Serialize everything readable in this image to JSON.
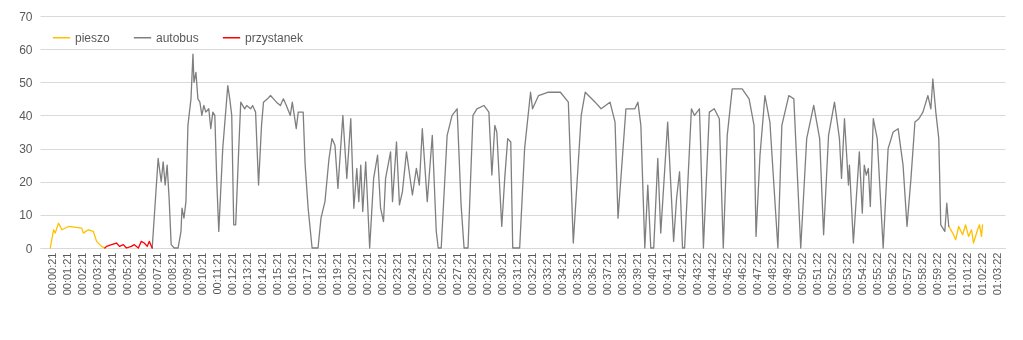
{
  "chart_data": {
    "type": "line",
    "ylim": [
      0,
      70
    ],
    "yticks": [
      0,
      10,
      20,
      30,
      40,
      50,
      60,
      70
    ],
    "grid": "y",
    "legend": "top left",
    "xlim": [
      -0.0085,
      1.064
    ],
    "xticks": [
      {
        "value": 0.00583,
        "label": "00:00:21"
      },
      {
        "value": 0.0225,
        "label": "00:01:21"
      },
      {
        "value": 0.03917,
        "label": "00:02:21"
      },
      {
        "value": 0.05583,
        "label": "00:03:21"
      },
      {
        "value": 0.0725,
        "label": "00:04:21"
      },
      {
        "value": 0.08917,
        "label": "00:05:21"
      },
      {
        "value": 0.10583,
        "label": "00:06:21"
      },
      {
        "value": 0.1225,
        "label": "00:07:21"
      },
      {
        "value": 0.13917,
        "label": "00:08:21"
      },
      {
        "value": 0.15583,
        "label": "00:09:21"
      },
      {
        "value": 0.1725,
        "label": "00:10:21"
      },
      {
        "value": 0.18917,
        "label": "00:11:21"
      },
      {
        "value": 0.20583,
        "label": "00:12:21"
      },
      {
        "value": 0.2225,
        "label": "00:13:21"
      },
      {
        "value": 0.23917,
        "label": "00:14:21"
      },
      {
        "value": 0.25583,
        "label": "00:15:21"
      },
      {
        "value": 0.2725,
        "label": "00:16:21"
      },
      {
        "value": 0.28917,
        "label": "00:17:21"
      },
      {
        "value": 0.30583,
        "label": "00:18:21"
      },
      {
        "value": 0.3225,
        "label": "00:19:21"
      },
      {
        "value": 0.33917,
        "label": "00:20:21"
      },
      {
        "value": 0.35583,
        "label": "00:21:21"
      },
      {
        "value": 0.3725,
        "label": "00:22:21"
      },
      {
        "value": 0.38917,
        "label": "00:23:21"
      },
      {
        "value": 0.40583,
        "label": "00:24:21"
      },
      {
        "value": 0.4225,
        "label": "00:25:21"
      },
      {
        "value": 0.43917,
        "label": "00:26:21"
      },
      {
        "value": 0.45583,
        "label": "00:27:21"
      },
      {
        "value": 0.4725,
        "label": "00:28:21"
      },
      {
        "value": 0.48917,
        "label": "00:29:21"
      },
      {
        "value": 0.50583,
        "label": "00:30:21"
      },
      {
        "value": 0.5225,
        "label": "00:31:21"
      },
      {
        "value": 0.53917,
        "label": "00:32:21"
      },
      {
        "value": 0.55583,
        "label": "00:33:21"
      },
      {
        "value": 0.5725,
        "label": "00:34:21"
      },
      {
        "value": 0.58917,
        "label": "00:35:21"
      },
      {
        "value": 0.60583,
        "label": "00:36:21"
      },
      {
        "value": 0.6225,
        "label": "00:37:21"
      },
      {
        "value": 0.63917,
        "label": "00:38:21"
      },
      {
        "value": 0.65583,
        "label": "00:39:21"
      },
      {
        "value": 0.6725,
        "label": "00:40:21"
      },
      {
        "value": 0.68917,
        "label": "00:41:21"
      },
      {
        "value": 0.70583,
        "label": "00:42:21"
      },
      {
        "value": 0.72278,
        "label": "00:43:22"
      },
      {
        "value": 0.73944,
        "label": "00:44:22"
      },
      {
        "value": 0.75611,
        "label": "00:45:22"
      },
      {
        "value": 0.77278,
        "label": "00:46:22"
      },
      {
        "value": 0.78944,
        "label": "00:47:22"
      },
      {
        "value": 0.80611,
        "label": "00:48:22"
      },
      {
        "value": 0.82278,
        "label": "00:49:22"
      },
      {
        "value": 0.83944,
        "label": "00:50:22"
      },
      {
        "value": 0.85611,
        "label": "00:51:22"
      },
      {
        "value": 0.87278,
        "label": "00:52:22"
      },
      {
        "value": 0.88944,
        "label": "00:53:22"
      },
      {
        "value": 0.90611,
        "label": "00:54:22"
      },
      {
        "value": 0.92278,
        "label": "00:55:22"
      },
      {
        "value": 0.93944,
        "label": "00:56:22"
      },
      {
        "value": 0.95611,
        "label": "00:57:22"
      },
      {
        "value": 0.97278,
        "label": "00:58:22"
      },
      {
        "value": 0.98944,
        "label": "00:59:22"
      },
      {
        "value": 1.00611,
        "label": "01:00:22"
      },
      {
        "value": 1.02278,
        "label": "01:01:22"
      },
      {
        "value": 1.03944,
        "label": "01:02:22"
      },
      {
        "value": 1.05611,
        "label": "01:03:22"
      }
    ],
    "series": [
      {
        "name": "pieszo",
        "color": "#ffc000",
        "x": [
          0.0029,
          0.0066,
          0.0084,
          0.0121,
          0.0158,
          0.0232,
          0.0379,
          0.0397,
          0.0453,
          0.0508,
          0.0544,
          0.0599,
          0.0636,
          0.5,
          1.0015,
          1.0059,
          1.0092,
          1.0125,
          1.0169,
          1.0202,
          1.0235,
          1.0268,
          1.029,
          1.0335,
          1.0357,
          1.0379,
          1.039
        ],
        "values": [
          0,
          5.5,
          4.5,
          7.5,
          5.5,
          6.5,
          6,
          4.5,
          5.5,
          5,
          2,
          0.5,
          0,
          null,
          6.5,
          4.5,
          2.5,
          6.5,
          4,
          7,
          3.5,
          5.5,
          1.5,
          5.5,
          7,
          3.5,
          7
        ]
      },
      {
        "name": "autobus",
        "color": "#7f7f7f",
        "x": [
          0.1162,
          0.1228,
          0.1262,
          0.1284,
          0.1306,
          0.1328,
          0.135,
          0.1373,
          0.1406,
          0.145,
          0.1482,
          0.1493,
          0.1515,
          0.1537,
          0.1559,
          0.1593,
          0.1615,
          0.1626,
          0.1648,
          0.167,
          0.1692,
          0.1714,
          0.1736,
          0.1758,
          0.1791,
          0.1813,
          0.1836,
          0.1858,
          0.188,
          0.1902,
          0.1946,
          0.2002,
          0.2024,
          0.2046,
          0.2068,
          0.209,
          0.2124,
          0.2146,
          0.219,
          0.2212,
          0.2256,
          0.2278,
          0.2311,
          0.2344,
          0.2377,
          0.2399,
          0.2443,
          0.2477,
          0.251,
          0.2543,
          0.2587,
          0.262,
          0.2653,
          0.2697,
          0.2719,
          0.2741,
          0.2763,
          0.2785,
          0.284,
          0.2862,
          0.2895,
          0.2939,
          0.3005,
          0.3038,
          0.3082,
          0.3127,
          0.316,
          0.3193,
          0.3226,
          0.3281,
          0.3325,
          0.3369,
          0.3403,
          0.3436,
          0.3458,
          0.348,
          0.3502,
          0.3535,
          0.3579,
          0.3623,
          0.3667,
          0.37,
          0.3733,
          0.3756,
          0.3811,
          0.3833,
          0.3877,
          0.391,
          0.3943,
          0.3988,
          0.4054,
          0.4098,
          0.4131,
          0.4164,
          0.4219,
          0.4275,
          0.4319,
          0.4341,
          0.4374,
          0.444,
          0.4495,
          0.4551,
          0.4595,
          0.4628,
          0.4672,
          0.4727,
          0.4771,
          0.4849,
          0.4904,
          0.4937,
          0.497,
          0.4992,
          0.5047,
          0.508,
          0.5113,
          0.5147,
          0.5169,
          0.5246,
          0.5301,
          0.5367,
          0.5389,
          0.5456,
          0.5566,
          0.5699,
          0.5787,
          0.5842,
          0.593,
          0.5975,
          0.6085,
          0.6151,
          0.625,
          0.6306,
          0.6339,
          0.6427,
          0.6526,
          0.656,
          0.6593,
          0.6637,
          0.667,
          0.6703,
          0.6736,
          0.6781,
          0.6814,
          0.6891,
          0.6957,
          0.699,
          0.7023,
          0.7056,
          0.7079,
          0.7112,
          0.7155,
          0.7189,
          0.7244,
          0.7255,
          0.7288,
          0.7354,
          0.7409,
          0.7465,
          0.7509,
          0.7553,
          0.7608,
          0.7719,
          0.7796,
          0.7851,
          0.7873,
          0.7917,
          0.7972,
          0.8027,
          0.8116,
          0.816,
          0.8237,
          0.8293,
          0.837,
          0.8436,
          0.8514,
          0.858,
          0.8624,
          0.8679,
          0.8745,
          0.88,
          0.8823,
          0.8856,
          0.89,
          0.8911,
          0.8955,
          0.9021,
          0.9054,
          0.9076,
          0.9098,
          0.9121,
          0.9143,
          0.9176,
          0.922,
          0.9286,
          0.9341,
          0.9397,
          0.9452,
          0.9507,
          0.9551,
          0.9595,
          0.9639,
          0.9683,
          0.9728,
          0.9783,
          0.9816,
          0.9838,
          0.9871,
          0.9904,
          0.9926,
          0.9971,
          0.9993,
          1.0015
        ],
        "values": [
          0,
          27,
          20,
          26,
          19,
          25,
          15,
          1,
          0,
          0,
          5,
          12,
          9,
          14,
          37,
          45,
          58.5,
          50,
          53,
          45,
          44,
          40,
          43,
          41,
          42,
          36,
          41,
          40,
          20,
          5,
          30,
          49,
          45,
          40,
          7,
          7,
          30,
          44,
          42,
          43,
          42,
          43,
          41,
          19,
          37,
          44,
          45,
          46,
          45,
          44,
          43,
          45,
          43,
          40,
          44,
          40,
          36,
          41,
          41,
          25,
          12,
          0,
          0,
          9,
          14,
          27,
          33,
          31,
          18,
          40,
          21,
          39,
          12,
          24,
          14,
          25,
          11,
          26,
          0,
          21,
          28,
          12,
          8,
          21,
          29,
          14,
          32,
          13,
          17,
          29,
          16,
          24,
          19,
          36,
          14,
          34,
          5,
          0,
          0,
          34,
          40,
          42,
          13,
          0,
          0,
          40,
          42,
          43,
          41,
          22,
          37,
          35,
          6.5,
          21,
          33,
          32,
          0,
          0,
          30,
          47,
          42,
          46,
          47,
          47,
          44,
          1.5,
          40,
          47,
          44,
          42,
          44,
          38,
          9,
          42,
          42,
          44,
          37,
          0,
          19,
          0,
          0,
          27,
          4.5,
          38,
          2,
          15,
          23,
          0,
          0,
          18,
          42,
          40,
          42,
          33,
          0,
          41,
          42,
          39,
          0,
          34,
          48,
          48,
          45,
          37,
          3.5,
          28,
          46,
          38,
          0,
          37,
          46,
          45,
          0,
          33,
          43,
          33,
          4,
          34,
          44,
          33,
          21,
          39,
          19,
          25,
          1.5,
          29,
          10.5,
          25,
          22,
          24,
          12.5,
          39,
          33,
          0,
          30,
          35,
          36,
          25,
          6.5,
          21,
          38,
          39,
          41,
          46,
          42,
          51,
          41,
          33,
          7,
          5,
          13.5,
          6.5
        ]
      },
      {
        "name": "przystanek",
        "color": "#ff0000",
        "x": [
          0.0636,
          0.0655,
          0.071,
          0.0765,
          0.0798,
          0.0842,
          0.0875,
          0.093,
          0.0964,
          0.1008,
          0.1041,
          0.1074,
          0.1107,
          0.1129,
          0.1162
        ],
        "values": [
          0,
          0.5,
          1,
          1.5,
          0.5,
          1,
          0,
          0.5,
          1,
          0,
          2,
          1.5,
          0.5,
          2,
          0
        ]
      }
    ]
  }
}
